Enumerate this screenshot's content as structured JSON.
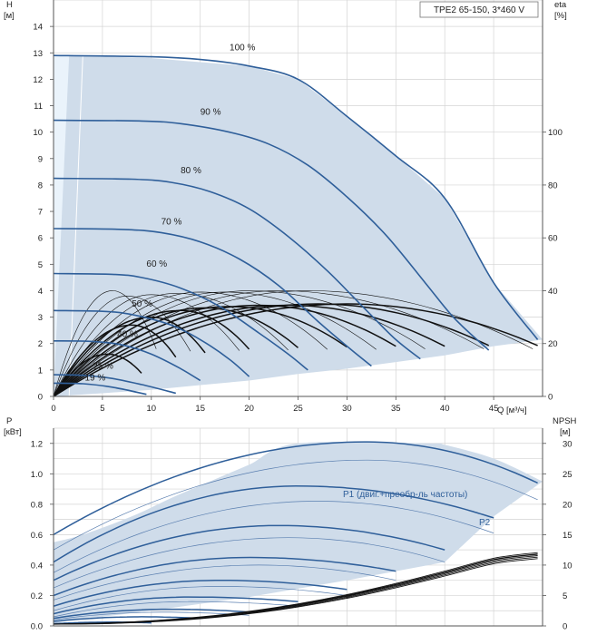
{
  "model": "TPE2 65-150, 3*460 V",
  "colors": {
    "area": "#cfdcea",
    "area_light": "#eaf3fb",
    "curve": "#2f5f9a",
    "eta": "#111111",
    "grid": "#d4d4d4",
    "thin": "#5a7fb0"
  },
  "chart_data": [
    {
      "type": "line",
      "title": "",
      "xlabel": "Q [м³/ч]",
      "ylabel": "H [м]",
      "y2label": "eta [%]",
      "xlim": [
        0,
        50
      ],
      "ylim": [
        0,
        15
      ],
      "y2lim": [
        0,
        150
      ],
      "xticks": [
        0,
        5,
        10,
        15,
        20,
        25,
        30,
        35,
        40,
        45
      ],
      "yticks": [
        0,
        1,
        2,
        3,
        4,
        5,
        6,
        7,
        8,
        9,
        10,
        11,
        12,
        13,
        14
      ],
      "y2ticks": [
        0,
        20,
        40,
        60,
        80,
        100
      ],
      "grid": true,
      "operating_range": [
        [
          0,
          12.9
        ],
        [
          1.6,
          12.9
        ],
        [
          10,
          12.8
        ],
        [
          20,
          12.5
        ],
        [
          25,
          12.0
        ],
        [
          30,
          10.6
        ],
        [
          35,
          9.1
        ],
        [
          40,
          7.5
        ],
        [
          45,
          4.3
        ],
        [
          50,
          2.15
        ],
        [
          45,
          1.9
        ],
        [
          40,
          1.55
        ],
        [
          35,
          1.3
        ],
        [
          30,
          1.05
        ],
        [
          25,
          0.85
        ],
        [
          20,
          0.6
        ],
        [
          15,
          0.43
        ],
        [
          10,
          0.25
        ],
        [
          5,
          0.12
        ],
        [
          0,
          0
        ]
      ],
      "series": [
        {
          "name": "100 %",
          "label_x": 18,
          "label_y": 13.1,
          "points": [
            [
              0,
              12.9
            ],
            [
              10,
              12.85
            ],
            [
              15,
              12.75
            ],
            [
              20,
              12.5
            ],
            [
              25,
              12.0
            ],
            [
              30,
              10.6
            ],
            [
              35,
              9.1
            ],
            [
              40,
              7.5
            ],
            [
              45,
              4.3
            ],
            [
              49.5,
              2.15
            ]
          ]
        },
        {
          "name": "90 %",
          "label_x": 15,
          "label_y": 10.65,
          "points": [
            [
              0,
              10.45
            ],
            [
              9,
              10.42
            ],
            [
              13,
              10.32
            ],
            [
              18,
              10.0
            ],
            [
              22,
              9.55
            ],
            [
              26,
              8.75
            ],
            [
              30,
              7.55
            ],
            [
              34,
              6.1
            ],
            [
              38,
              4.3
            ],
            [
              41,
              2.95
            ],
            [
              44.5,
              1.75
            ]
          ]
        },
        {
          "name": "80 %",
          "label_x": 13,
          "label_y": 8.45,
          "points": [
            [
              0,
              8.25
            ],
            [
              8,
              8.22
            ],
            [
              12,
              8.1
            ],
            [
              16,
              7.75
            ],
            [
              20,
              7.1
            ],
            [
              24,
              6.05
            ],
            [
              28,
              4.75
            ],
            [
              32,
              3.25
            ],
            [
              35,
              2.15
            ],
            [
              37.5,
              1.42
            ]
          ]
        },
        {
          "name": "70 %",
          "label_x": 11,
          "label_y": 6.5,
          "points": [
            [
              0,
              6.35
            ],
            [
              7,
              6.32
            ],
            [
              11,
              6.2
            ],
            [
              15,
              5.85
            ],
            [
              19,
              5.2
            ],
            [
              23,
              4.2
            ],
            [
              27,
              2.85
            ],
            [
              30,
              1.9
            ],
            [
              32.5,
              1.15
            ]
          ]
        },
        {
          "name": "60 %",
          "label_x": 9.5,
          "label_y": 4.9,
          "points": [
            [
              0,
              4.65
            ],
            [
              6,
              4.62
            ],
            [
              9,
              4.5
            ],
            [
              13,
              4.1
            ],
            [
              17,
              3.4
            ],
            [
              21,
              2.4
            ],
            [
              24,
              1.6
            ],
            [
              26,
              1.0
            ]
          ]
        },
        {
          "name": "50 %",
          "label_x": 8,
          "label_y": 3.4,
          "points": [
            [
              0,
              3.25
            ],
            [
              5,
              3.22
            ],
            [
              8,
              3.1
            ],
            [
              12,
              2.7
            ],
            [
              15,
              2.15
            ],
            [
              18,
              1.4
            ],
            [
              20,
              0.75
            ]
          ]
        },
        {
          "name": "40 %",
          "label_x": 6.5,
          "label_y": 2.25,
          "points": [
            [
              0,
              2.1
            ],
            [
              4,
              2.08
            ],
            [
              7,
              1.95
            ],
            [
              10,
              1.6
            ],
            [
              13,
              1.05
            ],
            [
              15,
              0.6
            ]
          ]
        },
        {
          "name": "25 %",
          "label_x": 4,
          "label_y": 1.05,
          "points": [
            [
              0,
              0.82
            ],
            [
              3,
              0.8
            ],
            [
              6,
              0.68
            ],
            [
              9,
              0.45
            ],
            [
              12.5,
              0.12
            ]
          ]
        },
        {
          "name": "19 %",
          "label_x": 3.2,
          "label_y": 0.6,
          "points": [
            [
              0,
              0.5
            ],
            [
              3,
              0.48
            ],
            [
              6,
              0.35
            ],
            [
              9.5,
              0.08
            ]
          ]
        }
      ],
      "eta_thin_curves": [
        {
          "peak_q": 26,
          "peak_eta": 40,
          "end_q": 49
        },
        {
          "peak_q": 23,
          "peak_eta": 40,
          "end_q": 44
        },
        {
          "peak_q": 20,
          "peak_eta": 40,
          "end_q": 38
        },
        {
          "peak_q": 17.5,
          "peak_eta": 39.5,
          "end_q": 33
        },
        {
          "peak_q": 15,
          "peak_eta": 39.5,
          "end_q": 28
        },
        {
          "peak_q": 12.5,
          "peak_eta": 39,
          "end_q": 24
        },
        {
          "peak_q": 10,
          "peak_eta": 38.5,
          "end_q": 19
        },
        {
          "peak_q": 7.5,
          "peak_eta": 38,
          "end_q": 14
        },
        {
          "peak_q": 6,
          "peak_eta": 40,
          "end_q": 10.5
        }
      ],
      "eta_thick_curves": [
        {
          "peak_q": 30,
          "peak_eta": 35,
          "end_q": 49.5
        },
        {
          "peak_q": 27,
          "peak_eta": 35,
          "end_q": 44.5
        },
        {
          "peak_q": 24,
          "peak_eta": 34.5,
          "end_q": 40
        },
        {
          "peak_q": 21,
          "peak_eta": 34.5,
          "end_q": 35
        },
        {
          "peak_q": 18,
          "peak_eta": 34,
          "end_q": 30
        },
        {
          "peak_q": 15.5,
          "peak_eta": 33.5,
          "end_q": 25
        },
        {
          "peak_q": 13,
          "peak_eta": 32.5,
          "end_q": 20
        },
        {
          "peak_q": 10,
          "peak_eta": 30,
          "end_q": 15.5
        },
        {
          "peak_q": 8,
          "peak_eta": 27,
          "end_q": 12.5
        },
        {
          "peak_q": 5.5,
          "peak_eta": 16,
          "end_q": 9
        }
      ]
    },
    {
      "type": "line",
      "title": "",
      "xlabel": "",
      "ylabel": "P [кВт]",
      "y2label": "NPSH [м]",
      "xlim": [
        0,
        50
      ],
      "ylim": [
        0,
        1.3
      ],
      "y2lim": [
        0,
        32.5
      ],
      "yticks": [
        0.0,
        0.2,
        0.4,
        0.6,
        0.8,
        1.0,
        1.2
      ],
      "ytick_labels": [
        "0.0",
        "0.2",
        "0.4",
        "0.6",
        "0.8",
        "1.0",
        "1.2"
      ],
      "y2ticks": [
        0,
        5,
        10,
        15,
        20,
        25,
        30
      ],
      "grid": true,
      "operating_range": [
        [
          0,
          0.55
        ],
        [
          3,
          0.6
        ],
        [
          8,
          0.72
        ],
        [
          12,
          0.84
        ],
        [
          16,
          0.95
        ],
        [
          20,
          1.06
        ],
        [
          25,
          1.2
        ],
        [
          38.5,
          1.2
        ],
        [
          40,
          1.19
        ],
        [
          45,
          1.1
        ],
        [
          50,
          0.95
        ],
        [
          45,
          0.72
        ],
        [
          40,
          0.42
        ],
        [
          30,
          0.3
        ],
        [
          20,
          0.19
        ],
        [
          10,
          0.1
        ],
        [
          0,
          0.02
        ]
      ],
      "p1_label": "P1 (двиг.+преобр-ль частоты)",
      "p2_label": "P2",
      "power_curves": [
        {
          "start": 0.6,
          "peak_q": 32,
          "peak": 1.21,
          "end_q": 49.5,
          "end": 0.94
        },
        {
          "start": 0.42,
          "peak_q": 25,
          "peak": 0.92,
          "end_q": 45,
          "end": 0.71
        },
        {
          "start": 0.3,
          "peak_q": 23,
          "peak": 0.66,
          "end_q": 40,
          "end": 0.5
        },
        {
          "start": 0.2,
          "peak_q": 20,
          "peak": 0.45,
          "end_q": 35,
          "end": 0.36
        },
        {
          "start": 0.13,
          "peak_q": 17,
          "peak": 0.3,
          "end_q": 30,
          "end": 0.24
        },
        {
          "start": 0.08,
          "peak_q": 14,
          "peak": 0.19,
          "end_q": 25,
          "end": 0.16
        },
        {
          "start": 0.05,
          "peak_q": 12,
          "peak": 0.11,
          "end_q": 20,
          "end": 0.09
        },
        {
          "start": 0.03,
          "peak_q": 9,
          "peak": 0.06,
          "end_q": 15,
          "end": 0.05
        },
        {
          "start": 0.015,
          "peak_q": 6,
          "peak": 0.025,
          "end_q": 10,
          "end": 0.02
        }
      ],
      "p2_curves": [
        {
          "start": 0.5,
          "peak_q": 32,
          "peak": 1.09,
          "end_q": 49.5,
          "end": 0.83
        },
        {
          "start": 0.35,
          "peak_q": 27,
          "peak": 0.82,
          "end_q": 45,
          "end": 0.61
        },
        {
          "start": 0.25,
          "peak_q": 24,
          "peak": 0.58,
          "end_q": 40,
          "end": 0.42
        },
        {
          "start": 0.17,
          "peak_q": 21,
          "peak": 0.4,
          "end_q": 35,
          "end": 0.3
        },
        {
          "start": 0.1,
          "peak_q": 17,
          "peak": 0.26,
          "end_q": 30,
          "end": 0.2
        },
        {
          "start": 0.06,
          "peak_q": 14,
          "peak": 0.16,
          "end_q": 25,
          "end": 0.13
        },
        {
          "start": 0.04,
          "peak_q": 11,
          "peak": 0.09,
          "end_q": 20,
          "end": 0.07
        }
      ],
      "npsh_curve": [
        [
          0,
          0.3
        ],
        [
          5,
          0.45
        ],
        [
          10,
          0.8
        ],
        [
          15,
          1.4
        ],
        [
          20,
          2.3
        ],
        [
          25,
          3.5
        ],
        [
          30,
          5.0
        ],
        [
          35,
          6.8
        ],
        [
          40,
          8.8
        ],
        [
          45,
          10.9
        ],
        [
          49.5,
          11.8
        ]
      ],
      "npsh_bundle_offsets": [
        0,
        -0.25,
        -0.5,
        0.25,
        -0.75
      ]
    }
  ]
}
